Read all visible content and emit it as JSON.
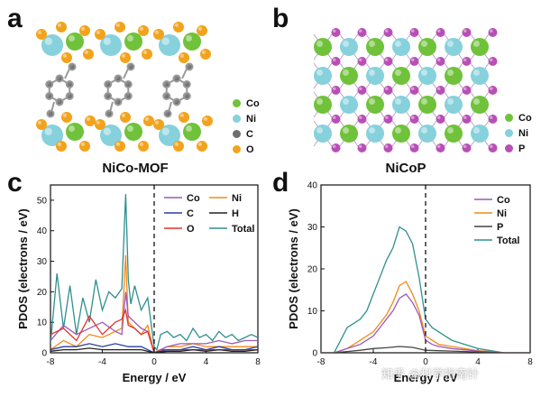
{
  "panels": {
    "a": {
      "letter": "a",
      "caption": "NiCo-MOF",
      "legend": [
        {
          "label": "Co",
          "color": "#6fc23a"
        },
        {
          "label": "Ni",
          "color": "#86d1dc"
        },
        {
          "label": "C",
          "color": "#6f6f6f"
        },
        {
          "label": "O",
          "color": "#f2a31c"
        }
      ]
    },
    "b": {
      "letter": "b",
      "caption": "NiCoP",
      "legend": [
        {
          "label": "Co",
          "color": "#6fc23a"
        },
        {
          "label": "Ni",
          "color": "#86d1dc"
        },
        {
          "label": "P",
          "color": "#b84fb5"
        }
      ]
    },
    "c": {
      "letter": "c"
    },
    "d": {
      "letter": "d"
    }
  },
  "watermark": "知乎 @科学指南针",
  "chart_data": [
    {
      "id": "c",
      "type": "line",
      "xlabel": "Energy / eV",
      "ylabel": "PDOS (electrons / eV)",
      "xlim": [
        -8,
        8
      ],
      "ylim": [
        0,
        55
      ],
      "xticks": [
        -8,
        -4,
        0,
        4,
        8
      ],
      "yticks": [
        0,
        10,
        20,
        30,
        40,
        50
      ],
      "fermi_level": 0,
      "legend": [
        "Co",
        "Ni",
        "C",
        "H",
        "O",
        "Total"
      ],
      "series": [
        {
          "name": "Total",
          "color": "#2f8f8f",
          "x": [
            -8,
            -7.5,
            -7,
            -6.5,
            -6,
            -5.5,
            -5,
            -4.5,
            -4,
            -3.5,
            -3,
            -2.5,
            -2.2,
            -2,
            -1.8,
            -1.5,
            -1,
            -0.5,
            0,
            0.2,
            0.5,
            1,
            1.5,
            2,
            2.5,
            3,
            3.5,
            4,
            4.5,
            5,
            5.5,
            6,
            6.5,
            7,
            7.5,
            8
          ],
          "y": [
            3,
            26,
            8,
            22,
            6,
            18,
            10,
            24,
            14,
            20,
            18,
            21,
            52,
            24,
            16,
            22,
            14,
            18,
            2,
            1,
            6,
            7,
            5,
            6,
            4,
            8,
            5,
            6,
            4,
            7,
            5,
            6,
            4,
            5,
            6,
            5
          ]
        },
        {
          "name": "Ni",
          "color": "#f08c1a",
          "x": [
            -8,
            -7,
            -6,
            -5,
            -4,
            -3,
            -2.5,
            -2.2,
            -2,
            -1.5,
            -1,
            -0.5,
            0,
            0.5,
            1,
            2,
            3,
            4,
            5,
            6,
            7,
            8
          ],
          "y": [
            1,
            4,
            2,
            6,
            5,
            7,
            8,
            32,
            10,
            8,
            6,
            9,
            0,
            1,
            2,
            2,
            3,
            2,
            2,
            2,
            2,
            2
          ]
        },
        {
          "name": "Co",
          "color": "#9b59b6",
          "x": [
            -8,
            -7,
            -6,
            -5,
            -4,
            -3,
            -2.5,
            -2.2,
            -2,
            -1.5,
            -1,
            -0.5,
            0,
            0.5,
            1,
            2,
            3,
            4,
            5,
            6,
            7,
            8
          ],
          "y": [
            4,
            9,
            6,
            8,
            10,
            7,
            6,
            20,
            12,
            10,
            8,
            7,
            0,
            1,
            2,
            3,
            3,
            3,
            4,
            3,
            4,
            4
          ]
        },
        {
          "name": "O",
          "color": "#e0332d",
          "x": [
            -8,
            -7,
            -6,
            -5,
            -4,
            -3,
            -2.5,
            -2.2,
            -2,
            -1.5,
            -1,
            -0.5,
            0,
            0.5,
            1,
            2,
            3,
            4,
            5,
            6,
            7,
            8
          ],
          "y": [
            6,
            8,
            4,
            12,
            6,
            10,
            11,
            14,
            9,
            8,
            6,
            7,
            0,
            1,
            1,
            1,
            1,
            1,
            1,
            1,
            1,
            1
          ]
        },
        {
          "name": "C",
          "color": "#2c3e9e",
          "x": [
            -8,
            -7,
            -6,
            -5,
            -4,
            -3,
            -2,
            -1,
            0,
            1,
            2,
            3,
            4,
            5,
            6,
            7,
            8
          ],
          "y": [
            1,
            2,
            2,
            3,
            2,
            3,
            2,
            2,
            0,
            1,
            1,
            2,
            1,
            2,
            1,
            1,
            2
          ]
        },
        {
          "name": "H",
          "color": "#222222",
          "x": [
            -8,
            -7,
            -6,
            -5,
            -4,
            -3,
            -2,
            -1,
            0,
            1,
            2,
            3,
            4,
            5,
            6,
            7,
            8
          ],
          "y": [
            0.5,
            1,
            1,
            1.5,
            1,
            1,
            1,
            1,
            0,
            0.5,
            0.5,
            1,
            0.5,
            1,
            0.5,
            0.5,
            1
          ]
        }
      ]
    },
    {
      "id": "d",
      "type": "line",
      "xlabel": "Energy / eV",
      "ylabel": "PDOS (electrons / eV)",
      "xlim": [
        -8,
        8
      ],
      "ylim": [
        0,
        40
      ],
      "xticks": [
        -8,
        -4,
        0,
        4,
        8
      ],
      "yticks": [
        0,
        10,
        20,
        30,
        40
      ],
      "fermi_level": 0,
      "legend": [
        "Co",
        "Ni",
        "P",
        "Total"
      ],
      "series": [
        {
          "name": "Total",
          "color": "#2f8f8f",
          "x": [
            -8,
            -7,
            -6.5,
            -6,
            -5,
            -4.5,
            -4,
            -3.5,
            -3,
            -2.5,
            -2,
            -1.5,
            -1,
            -0.5,
            0,
            0.5,
            1,
            1.5,
            2,
            3,
            4,
            5,
            6,
            7,
            8
          ],
          "y": [
            0,
            0,
            3,
            6,
            8,
            10,
            14,
            18,
            22,
            25,
            30,
            29,
            26,
            18,
            8,
            6,
            5,
            4,
            3,
            2,
            1,
            0.5,
            0,
            0,
            0
          ]
        },
        {
          "name": "Ni",
          "color": "#f08c1a",
          "x": [
            -8,
            -7,
            -6,
            -5,
            -4,
            -3.5,
            -3,
            -2.5,
            -2,
            -1.5,
            -1,
            -0.5,
            0,
            0.5,
            1,
            2,
            3,
            4,
            5,
            6,
            7,
            8
          ],
          "y": [
            0,
            0,
            1,
            3,
            5,
            7,
            9,
            12,
            16,
            17,
            14,
            10,
            4,
            3,
            2,
            1.5,
            1,
            0.5,
            0.3,
            0,
            0,
            0
          ]
        },
        {
          "name": "Co",
          "color": "#9b59b6",
          "x": [
            -8,
            -7,
            -6,
            -5,
            -4,
            -3.5,
            -3,
            -2.5,
            -2,
            -1.5,
            -1,
            -0.5,
            0,
            0.5,
            1,
            2,
            3,
            4,
            5,
            6,
            7,
            8
          ],
          "y": [
            0,
            0,
            1,
            2,
            4,
            6,
            8,
            10,
            13,
            14,
            12,
            9,
            3,
            2,
            1.5,
            1,
            0.7,
            0.4,
            0.2,
            0,
            0,
            0
          ]
        },
        {
          "name": "P",
          "color": "#444444",
          "x": [
            -8,
            -7,
            -6,
            -5,
            -4,
            -3,
            -2,
            -1,
            0,
            1,
            2,
            3,
            4,
            5,
            6,
            7,
            8
          ],
          "y": [
            0,
            0,
            0.3,
            0.6,
            1,
            1.2,
            1.5,
            1.3,
            0.6,
            0.5,
            0.4,
            0.3,
            0.2,
            0.1,
            0,
            0,
            0
          ]
        }
      ]
    }
  ]
}
